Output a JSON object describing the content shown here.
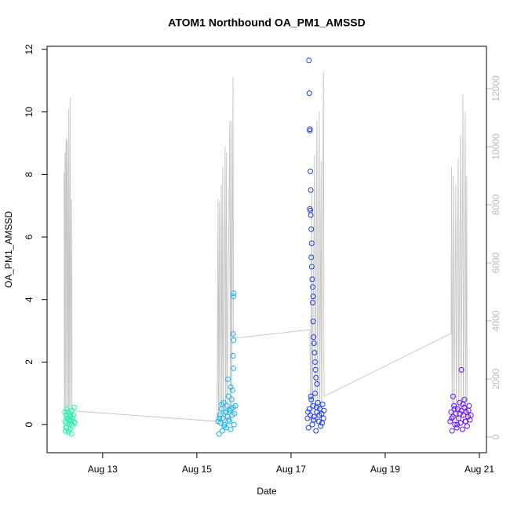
{
  "chart_data": {
    "type": "scatter",
    "title": "ATOM1 Northbound OA_PM1_AMSSD",
    "x_label": "Date",
    "y_label": "OA_PM1_AMSSD",
    "xlim": [
      11.82,
      21.15
    ],
    "xticks": [
      {
        "value": 13,
        "label": "Aug 13"
      },
      {
        "value": 15,
        "label": "Aug 15"
      },
      {
        "value": 17,
        "label": "Aug 17"
      },
      {
        "value": 19,
        "label": "Aug 19"
      },
      {
        "value": 21,
        "label": "Aug 21"
      }
    ],
    "ylim": [
      -0.9,
      12.1
    ],
    "yticks": [
      0,
      2,
      4,
      6,
      8,
      10,
      12
    ],
    "y2lim": [
      -540,
      13460
    ],
    "y2ticks": [
      0,
      2000,
      4000,
      6000,
      8000,
      10000,
      12000
    ],
    "y2_color": "#bbbbbb",
    "series": [
      {
        "type": "line",
        "axis": "y2",
        "color": "#c8c8c8",
        "x": [
          12.18,
          12.19,
          12.2,
          12.21,
          12.22,
          12.23,
          12.24,
          12.25,
          12.27,
          12.28,
          12.29,
          12.31,
          12.32,
          12.34,
          12.35,
          12.38,
          15.43,
          15.45,
          15.46,
          15.48,
          15.49,
          15.52,
          15.53,
          15.55,
          15.56,
          15.6,
          15.61,
          15.63,
          15.64,
          15.7,
          15.71,
          15.73,
          15.74,
          15.77,
          15.78,
          17.4,
          17.42,
          17.44,
          17.45,
          17.5,
          17.51,
          17.55,
          17.56,
          17.6,
          17.61,
          17.64,
          17.65,
          17.69,
          17.7,
          20.4,
          20.41,
          20.42,
          20.45,
          20.46,
          20.5,
          20.51,
          20.55,
          20.56,
          20.6,
          20.61,
          20.65,
          20.66,
          20.7,
          20.71,
          20.73,
          20.74
        ],
        "values": [
          9100,
          500,
          9800,
          600,
          10000,
          10300,
          500,
          10200,
          400,
          11300,
          500,
          11700,
          600,
          8200,
          500,
          900,
          540,
          8200,
          500,
          8100,
          600,
          8700,
          500,
          9300,
          400,
          10000,
          500,
          9800,
          600,
          10900,
          500,
          10900,
          700,
          12400,
          3400,
          3700,
          500,
          8400,
          500,
          9700,
          400,
          10900,
          500,
          11200,
          600,
          9500,
          500,
          12600,
          1400,
          3570,
          9300,
          600,
          9000,
          500,
          8700,
          400,
          9600,
          500,
          10400,
          600,
          11800,
          500,
          11200,
          700,
          9000,
          600
        ]
      },
      {
        "color": "#2ef0b0",
        "x": [
          12.2,
          12.21,
          12.22,
          12.23,
          12.24,
          12.25,
          12.26,
          12.27,
          12.28,
          12.29,
          12.3,
          12.31,
          12.32,
          12.33,
          12.34,
          12.35,
          12.36,
          12.37,
          12.38,
          12.39,
          12.4,
          12.41,
          12.2,
          12.22,
          12.24,
          12.26,
          12.28,
          12.3,
          12.32,
          12.34
        ],
        "values": [
          0.1,
          -0.2,
          0.3,
          0.05,
          -0.1,
          0.2,
          0.4,
          -0.25,
          0.15,
          0.0,
          0.35,
          -0.15,
          0.25,
          0.1,
          -0.3,
          0.45,
          0.2,
          -0.05,
          0.3,
          0.1,
          0.55,
          0.05,
          0.4,
          -0.1,
          0.5,
          0.2,
          -0.2,
          0.15,
          0.3,
          0.0
        ]
      },
      {
        "color": "#1ab4f0",
        "x": [
          15.45,
          15.47,
          15.49,
          15.5,
          15.52,
          15.54,
          15.55,
          15.57,
          15.59,
          15.6,
          15.62,
          15.64,
          15.65,
          15.67,
          15.69,
          15.7,
          15.72,
          15.74,
          15.75,
          15.77,
          15.79,
          15.8,
          15.82,
          15.48,
          15.53,
          15.58,
          15.63,
          15.68,
          15.73,
          15.78,
          15.78,
          15.77,
          15.78,
          15.77,
          15.78,
          15.66,
          15.72,
          15.76
        ],
        "values": [
          0.1,
          -0.3,
          0.3,
          0.05,
          0.5,
          -0.2,
          0.2,
          0.7,
          0.0,
          0.4,
          -0.1,
          0.6,
          0.25,
          0.9,
          0.1,
          0.45,
          -0.15,
          0.8,
          0.3,
          0.55,
          0.0,
          0.35,
          0.6,
          0.2,
          0.65,
          -0.05,
          0.4,
          0.15,
          0.5,
          4.2,
          4.1,
          2.9,
          2.7,
          2.2,
          1.8,
          1.45,
          1.2,
          1.1
        ]
      },
      {
        "color": "#1a3cf5",
        "x": [
          17.38,
          17.39,
          17.4,
          17.4,
          17.41,
          17.42,
          17.4,
          17.41,
          17.42,
          17.43,
          17.44,
          17.43,
          17.44,
          17.45,
          17.46,
          17.47,
          17.46,
          17.47,
          17.48,
          17.49,
          17.5,
          17.51,
          17.52,
          17.53,
          17.55,
          17.35,
          17.37,
          17.39,
          17.41,
          17.43,
          17.45,
          17.47,
          17.49,
          17.51,
          17.53,
          17.55,
          17.57,
          17.59,
          17.61,
          17.63,
          17.65,
          17.67,
          17.69,
          17.7,
          17.36,
          17.42,
          17.48,
          17.54,
          17.6,
          17.66
        ],
        "values": [
          11.65,
          10.6,
          9.45,
          9.4,
          8.1,
          7.5,
          6.9,
          6.85,
          6.7,
          6.25,
          5.8,
          5.35,
          5.05,
          4.65,
          4.4,
          4.1,
          3.9,
          3.3,
          2.8,
          2.6,
          2.3,
          2.0,
          1.75,
          1.5,
          1.3,
          0.2,
          -0.1,
          0.5,
          0.3,
          0.8,
          0.0,
          0.6,
          0.25,
          1.0,
          -0.2,
          0.4,
          0.7,
          0.1,
          0.5,
          -0.05,
          0.35,
          0.65,
          0.2,
          0.45,
          0.4,
          0.9,
          0.15,
          0.55,
          0.3,
          0.05
        ]
      },
      {
        "color": "#6a14f5",
        "x": [
          20.38,
          20.4,
          20.42,
          20.44,
          20.46,
          20.48,
          20.5,
          20.52,
          20.54,
          20.56,
          20.58,
          20.6,
          20.62,
          20.64,
          20.66,
          20.68,
          20.7,
          20.72,
          20.74,
          20.76,
          20.78,
          20.8,
          20.82,
          20.41,
          20.47,
          20.53,
          20.59,
          20.65,
          20.71,
          20.77,
          20.62,
          20.44,
          20.68
        ],
        "values": [
          0.1,
          0.4,
          -0.2,
          0.25,
          0.6,
          0.0,
          0.35,
          -0.1,
          0.5,
          0.2,
          0.7,
          0.05,
          0.45,
          -0.15,
          0.3,
          0.55,
          0.1,
          0.4,
          -0.05,
          0.25,
          0.6,
          0.15,
          0.3,
          0.2,
          0.5,
          0.0,
          0.35,
          0.65,
          0.1,
          0.45,
          1.75,
          0.9,
          0.8
        ]
      }
    ]
  }
}
